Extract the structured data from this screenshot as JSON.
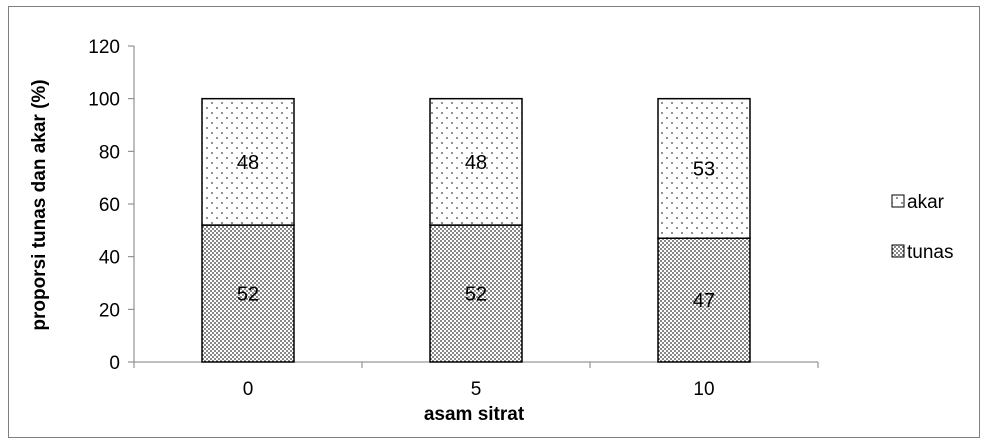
{
  "chart_data": {
    "type": "bar",
    "stacked": true,
    "categories": [
      "0",
      "5",
      "10"
    ],
    "series": [
      {
        "name": "tunas",
        "values": [
          52,
          52,
          47
        ],
        "pattern": "dense-dots"
      },
      {
        "name": "akar",
        "values": [
          48,
          48,
          53
        ],
        "pattern": "sparse-dots"
      }
    ],
    "xlabel": "asam sitrat",
    "ylabel": "proporsi  tunas dan akar (%)",
    "ylim": [
      0,
      120
    ],
    "yticks": [
      0,
      20,
      40,
      60,
      80,
      100,
      120
    ],
    "grid": false,
    "legend_position": "right",
    "legend": [
      "akar",
      "tunas"
    ],
    "colors": {
      "axis": "#7f7f7f",
      "bar_edge": "#000000",
      "fill_base": "#ffffff",
      "dot_dark": "#333333"
    }
  }
}
